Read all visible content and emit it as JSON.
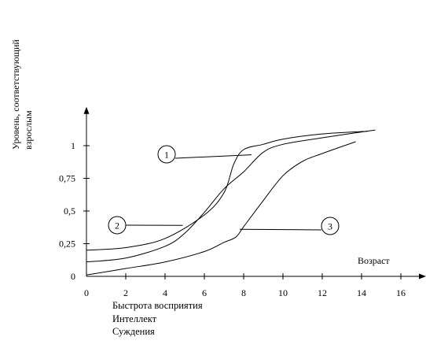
{
  "chart_data": {
    "type": "line",
    "title": "",
    "xlabel": "Возраст",
    "ylabel_lines": [
      "Уровень, соответствующий",
      "взрослым"
    ],
    "xlim": [
      0,
      17
    ],
    "ylim": [
      0,
      1.2
    ],
    "x_ticks": [
      0,
      2,
      4,
      6,
      8,
      10,
      12,
      14,
      16
    ],
    "y_ticks": [
      {
        "value": 0,
        "label": "0"
      },
      {
        "value": 0.25,
        "label": "0,25"
      },
      {
        "value": 0.5,
        "label": "0,5"
      },
      {
        "value": 0.75,
        "label": "0,75"
      },
      {
        "value": 1,
        "label": "1"
      }
    ],
    "legend": [
      "Быстрота восприятия",
      "Интеллект",
      "Суждения"
    ],
    "series": [
      {
        "marker": "1",
        "points": [
          [
            0,
            0.2
          ],
          [
            2,
            0.22
          ],
          [
            4,
            0.29
          ],
          [
            6,
            0.47
          ],
          [
            7,
            0.64
          ],
          [
            7.5,
            0.86
          ],
          [
            8,
            0.97
          ],
          [
            9,
            1.01
          ],
          [
            10,
            1.05
          ],
          [
            12,
            1.09
          ],
          [
            14.3,
            1.11
          ]
        ],
        "label_point": [
          8.4,
          0.93
        ]
      },
      {
        "marker": "2",
        "points": [
          [
            0,
            0.11
          ],
          [
            2,
            0.14
          ],
          [
            4,
            0.23
          ],
          [
            5,
            0.33
          ],
          [
            6,
            0.49
          ],
          [
            7,
            0.67
          ],
          [
            8,
            0.8
          ],
          [
            9,
            0.95
          ],
          [
            10,
            1.01
          ],
          [
            12,
            1.06
          ],
          [
            14.7,
            1.12
          ]
        ],
        "label_point": [
          4.9,
          0.39
        ]
      },
      {
        "marker": "3",
        "points": [
          [
            0,
            0.01
          ],
          [
            2,
            0.06
          ],
          [
            4,
            0.11
          ],
          [
            6,
            0.19
          ],
          [
            7,
            0.26
          ],
          [
            7.6,
            0.3
          ],
          [
            8,
            0.38
          ],
          [
            9,
            0.58
          ],
          [
            10,
            0.77
          ],
          [
            11,
            0.88
          ],
          [
            12,
            0.94
          ],
          [
            13.7,
            1.03
          ]
        ],
        "label_point": [
          7.8,
          0.36
        ]
      }
    ]
  }
}
